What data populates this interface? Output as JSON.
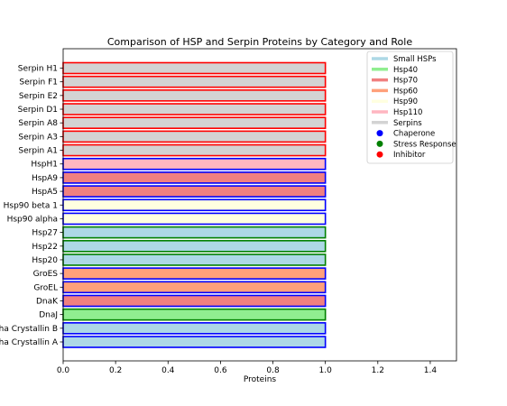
{
  "chart_data": {
    "type": "bar",
    "orientation": "horizontal",
    "title": "Comparison of HSP and Serpin Proteins by Category and Role",
    "xlabel": "Proteins",
    "ylabel": "",
    "xlim": [
      0,
      1.5
    ],
    "xticks": [
      "0.0",
      "0.2",
      "0.4",
      "0.6",
      "0.8",
      "1.0",
      "1.2",
      "1.4"
    ],
    "xtick_values": [
      0,
      0.2,
      0.4,
      0.6,
      0.8,
      1.0,
      1.2,
      1.4
    ],
    "grid": false,
    "legend_position": "top-right",
    "categories": [
      "Alpha Crystallin A",
      "Alpha Crystallin B",
      "DnaJ",
      "DnaK",
      "GroEL",
      "GroES",
      "Hsp20",
      "Hsp22",
      "Hsp27",
      "Hsp90 alpha",
      "Hsp90 beta 1",
      "HspA5",
      "HspA9",
      "HspH1",
      "Serpin A1",
      "Serpin A3",
      "Serpin A8",
      "Serpin D1",
      "Serpin E2",
      "Serpin F1",
      "Serpin H1"
    ],
    "values": [
      1,
      1,
      1,
      1,
      1,
      1,
      1,
      1,
      1,
      1,
      1,
      1,
      1,
      1,
      1,
      1,
      1,
      1,
      1,
      1,
      1
    ],
    "family": [
      "Small HSPs",
      "Small HSPs",
      "Hsp40",
      "Hsp70",
      "Hsp60",
      "Hsp60",
      "Small HSPs",
      "Small HSPs",
      "Small HSPs",
      "Hsp90",
      "Hsp90",
      "Hsp70",
      "Hsp70",
      "Hsp110",
      "Serpins",
      "Serpins",
      "Serpins",
      "Serpins",
      "Serpins",
      "Serpins",
      "Serpins"
    ],
    "role": [
      "Chaperone",
      "Chaperone",
      "Stress Response",
      "Chaperone",
      "Chaperone",
      "Chaperone",
      "Stress Response",
      "Stress Response",
      "Stress Response",
      "Chaperone",
      "Chaperone",
      "Chaperone",
      "Chaperone",
      "Chaperone",
      "Inhibitor",
      "Inhibitor",
      "Inhibitor",
      "Inhibitor",
      "Inhibitor",
      "Inhibitor",
      "Inhibitor"
    ],
    "family_legend": [
      {
        "name": "Small HSPs",
        "color": "#add8e6"
      },
      {
        "name": "Hsp40",
        "color": "#90ee90"
      },
      {
        "name": "Hsp70",
        "color": "#f08080"
      },
      {
        "name": "Hsp60",
        "color": "#ffa07a"
      },
      {
        "name": "Hsp90",
        "color": "#ffffe0"
      },
      {
        "name": "Hsp110",
        "color": "#ffb6c1"
      },
      {
        "name": "Serpins",
        "color": "#d3d3d3"
      }
    ],
    "role_legend": [
      {
        "name": "Chaperone",
        "color": "#0000ff"
      },
      {
        "name": "Stress Response",
        "color": "#008000"
      },
      {
        "name": "Inhibitor",
        "color": "#ff0000"
      }
    ]
  }
}
